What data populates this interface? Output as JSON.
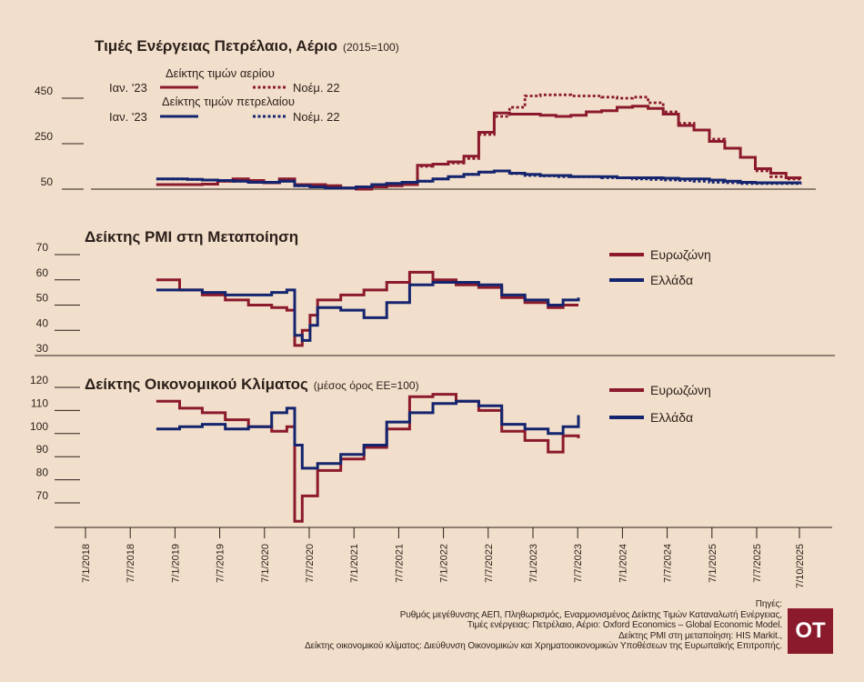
{
  "colors": {
    "red": "#8b1a2c",
    "blue": "#14246e",
    "axis": "#2b1f1a",
    "background": "#f2dfcb"
  },
  "chart_data": [
    {
      "type": "line",
      "title": "Τιμές Ενέργειας Πετρέλαιο, Αέριο",
      "subtitle": "(2015=100)",
      "yticks": [
        50,
        250,
        450
      ],
      "ylim": [
        50,
        450
      ],
      "legend": {
        "gas_header": "Δείκτης τιμών αερίου",
        "oil_header": "Δείκτης τιμών πετρελαίου",
        "solid_label": "Ιαν. '23",
        "dashed_label": "Νοέμ. 22"
      },
      "x_dates": [
        "2018-10",
        "2018-12",
        "2019-02",
        "2019-04",
        "2019-06",
        "2019-08",
        "2019-10",
        "2019-12",
        "2020-02",
        "2020-04",
        "2020-06",
        "2020-08",
        "2020-10",
        "2020-12",
        "2021-02",
        "2021-04",
        "2021-06",
        "2021-08",
        "2021-10",
        "2021-12",
        "2022-02",
        "2022-04",
        "2022-06",
        "2022-08",
        "2022-10",
        "2022-12",
        "2023-02",
        "2023-04",
        "2023-06",
        "2023-08",
        "2023-10",
        "2023-12",
        "2024-02",
        "2024-04",
        "2024-06",
        "2024-08",
        "2024-10",
        "2024-12",
        "2025-02",
        "2025-04",
        "2025-06",
        "2025-08",
        "2025-10"
      ],
      "series": [
        {
          "name": "Δείκτης τιμών αερίου — Ιαν. '23",
          "color": "#8b1a2c",
          "dash": false,
          "values": [
            70,
            70,
            70,
            72,
            85,
            95,
            88,
            78,
            95,
            70,
            70,
            65,
            55,
            50,
            60,
            65,
            70,
            155,
            160,
            170,
            195,
            300,
            385,
            380,
            380,
            375,
            370,
            375,
            390,
            395,
            410,
            415,
            405,
            380,
            330,
            310,
            260,
            230,
            190,
            140,
            120,
            100,
            100
          ]
        },
        {
          "name": "Δείκτης τιμών αερίου — Νοέμ. 22",
          "color": "#8b1a2c",
          "dash": true,
          "values": [
            70,
            70,
            70,
            72,
            85,
            95,
            88,
            78,
            95,
            70,
            70,
            65,
            55,
            50,
            60,
            65,
            70,
            150,
            160,
            165,
            185,
            290,
            370,
            410,
            460,
            465,
            465,
            460,
            460,
            455,
            450,
            455,
            430,
            390,
            340,
            310,
            270,
            230,
            190,
            130,
            105,
            95,
            90
          ]
        },
        {
          "name": "Δείκτης τιμών πετρελαίου — Ιαν. '23",
          "color": "#14246e",
          "dash": false,
          "values": [
            95,
            95,
            93,
            90,
            88,
            85,
            80,
            80,
            85,
            65,
            60,
            55,
            55,
            60,
            70,
            75,
            80,
            85,
            95,
            105,
            115,
            125,
            130,
            120,
            115,
            110,
            110,
            105,
            105,
            105,
            100,
            100,
            100,
            98,
            95,
            95,
            90,
            85,
            80,
            78,
            78,
            78,
            78
          ]
        },
        {
          "name": "Δείκτης τιμών πετρελαίου — Νοέμ. 22",
          "color": "#14246e",
          "dash": true,
          "values": [
            95,
            95,
            93,
            90,
            88,
            85,
            80,
            80,
            85,
            65,
            60,
            55,
            55,
            60,
            70,
            75,
            80,
            85,
            95,
            105,
            115,
            125,
            130,
            118,
            110,
            108,
            105,
            105,
            105,
            100,
            100,
            95,
            93,
            90,
            88,
            85,
            80,
            78,
            75,
            75,
            75,
            75,
            75
          ]
        }
      ]
    },
    {
      "type": "line",
      "title": "Δείκτης PMI στη Μεταποίηση",
      "yticks": [
        30,
        40,
        50,
        60,
        70
      ],
      "ylim": [
        30,
        70
      ],
      "x_dates": [
        "2018-10",
        "2019-01",
        "2019-04",
        "2019-07",
        "2019-10",
        "2020-01",
        "2020-03",
        "2020-04",
        "2020-05",
        "2020-06",
        "2020-07",
        "2020-10",
        "2021-01",
        "2021-04",
        "2021-07",
        "2021-10",
        "2022-01",
        "2022-04",
        "2022-07",
        "2022-10",
        "2023-01",
        "2023-03",
        "2023-05"
      ],
      "series": [
        {
          "name": "Ευρωζώνη",
          "color": "#8b1a2c",
          "values": [
            60,
            56,
            54,
            52,
            50,
            49,
            48,
            34,
            40,
            46,
            52,
            54,
            56,
            59,
            63,
            60,
            58,
            57,
            53,
            51,
            49,
            50,
            50
          ]
        },
        {
          "name": "Ελλάδα",
          "color": "#14246e",
          "values": [
            56,
            56,
            55,
            54,
            54,
            55,
            56,
            38,
            36,
            42,
            49,
            48,
            45,
            51,
            58,
            59,
            59,
            58,
            54,
            52,
            50,
            52,
            53
          ]
        }
      ]
    },
    {
      "type": "line",
      "title": "Δείκτης Οικονομικού Κλίματος",
      "subtitle": "(μέσος όρος ΕΕ=100)",
      "yticks": [
        70,
        80,
        90,
        100,
        110,
        120
      ],
      "ylim": [
        60,
        120
      ],
      "x_dates": [
        "2018-10",
        "2019-01",
        "2019-04",
        "2019-07",
        "2019-10",
        "2020-01",
        "2020-03",
        "2020-04",
        "2020-05",
        "2020-07",
        "2020-10",
        "2021-01",
        "2021-04",
        "2021-07",
        "2021-10",
        "2022-01",
        "2022-04",
        "2022-07",
        "2022-10",
        "2023-01",
        "2023-03",
        "2023-05"
      ],
      "series": [
        {
          "name": "Ευρωζώνη",
          "color": "#8b1a2c",
          "values": [
            114,
            111,
            109,
            106,
            103,
            101,
            103,
            62,
            73,
            84,
            89,
            94,
            102,
            116,
            117,
            114,
            110,
            101,
            97,
            92,
            99,
            98
          ]
        },
        {
          "name": "Ελλάδα",
          "color": "#14246e",
          "values": [
            102,
            103,
            104,
            102,
            103,
            109,
            111,
            95,
            85,
            87,
            91,
            95,
            105,
            109,
            113,
            114,
            112,
            104,
            102,
            100,
            103,
            108
          ]
        }
      ]
    }
  ],
  "xaxis_labels": [
    "7/1/2018",
    "7/7/2018",
    "7/1/2019",
    "7/7/2019",
    "7/1/2020",
    "7/7/2020",
    "7/1/2021",
    "7/7/2021",
    "7/1/2022",
    "7/7/2022",
    "7/1/2023",
    "7/7/2023",
    "7/1/2024",
    "7/7/2024",
    "7/1/2025",
    "7/7/2025",
    "7/10/2025"
  ],
  "sources": [
    "Πηγές:",
    "Ρυθμός μεγέθυνσης ΑΕΠ, Πληθωρισμός, Εναρμονισμένος Δείκτης Τιμών Καταναλωτή Ενέργειας,",
    "Τιμές ενέργειας: Πετρέλαιο, Αέριο: Oxford Economics – Global Economic Model.",
    "Δείκτης PMI στη μεταποίηση: HIS Markit.,",
    "Δείκτης οικονομικού κλίματος: Διεύθυνση Οικονομικών και Χρηματοοικονομικών Υποθέσεων της Ευρωπαϊκής Επιτροπής."
  ],
  "logo": {
    "text": "OT"
  }
}
